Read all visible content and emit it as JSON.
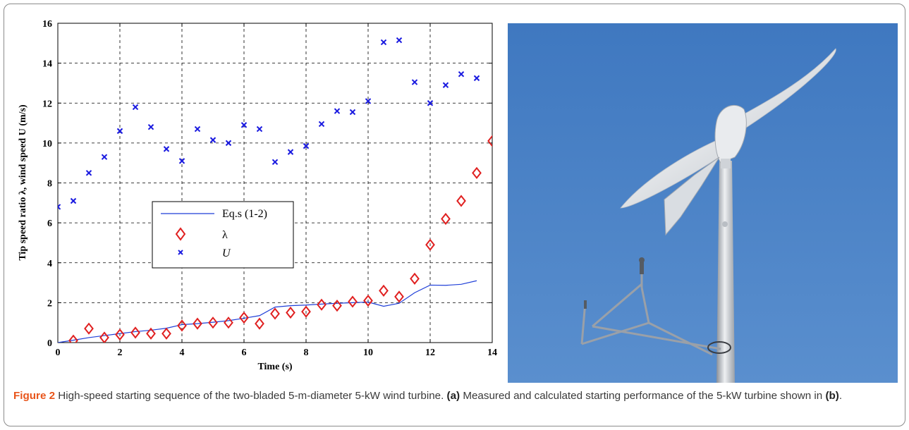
{
  "chart_data": {
    "type": "scatter",
    "xlabel": "Time (s)",
    "ylabel": "Tip speed ratio λ, wind speed U (m/s)",
    "xlim": [
      0,
      14
    ],
    "ylim": [
      0,
      16
    ],
    "xticks": [
      "0",
      "2",
      "4",
      "6",
      "8",
      "10",
      "12",
      "14"
    ],
    "yticks": [
      "0",
      "2",
      "4",
      "6",
      "8",
      "10",
      "12",
      "14",
      "16"
    ],
    "grid": true,
    "legend_position": "center-left",
    "series": [
      {
        "name": "Eq.s (1-2)",
        "kind": "line",
        "color": "#1f3fd8",
        "x": [
          0,
          0.5,
          1,
          1.5,
          2,
          2.5,
          3,
          3.5,
          4,
          4.5,
          5,
          5.5,
          6,
          6.5,
          7,
          7.5,
          8,
          8.5,
          9,
          9.5,
          10,
          10.5,
          11,
          11.5,
          12,
          12.5,
          13,
          13.5
        ],
        "y": [
          0,
          0.12,
          0.25,
          0.35,
          0.45,
          0.55,
          0.62,
          0.72,
          0.9,
          0.95,
          1.02,
          1.1,
          1.22,
          1.35,
          1.78,
          1.85,
          1.88,
          1.93,
          1.97,
          2.0,
          2.03,
          1.82,
          1.97,
          2.5,
          2.88,
          2.87,
          2.92,
          3.1
        ]
      },
      {
        "name": "λ",
        "kind": "diamond",
        "color": "#e02020",
        "x": [
          0.5,
          1,
          1.5,
          2,
          2.5,
          3,
          3.5,
          4,
          4.5,
          5,
          5.5,
          6,
          6.5,
          7,
          7.5,
          8,
          8.5,
          9,
          9.5,
          10,
          10.5,
          11,
          11.5,
          12,
          12.5,
          13,
          13.5,
          14
        ],
        "y": [
          0.1,
          0.7,
          0.25,
          0.4,
          0.5,
          0.45,
          0.45,
          0.85,
          0.95,
          1.0,
          1.0,
          1.25,
          0.95,
          1.45,
          1.5,
          1.55,
          1.9,
          1.85,
          2.05,
          2.1,
          2.6,
          2.3,
          3.2,
          4.9,
          6.2,
          7.1,
          8.5,
          10.1
        ]
      },
      {
        "name": "U",
        "kind": "x",
        "color": "#1a1ae0",
        "x": [
          0,
          0.5,
          1,
          1.5,
          2,
          2.5,
          3,
          3.5,
          4,
          4.5,
          5,
          5.5,
          6,
          6.5,
          7,
          7.5,
          8,
          8.5,
          9,
          9.5,
          10,
          10.5,
          11,
          11.5,
          12,
          12.5,
          13,
          13.5
        ],
        "y": [
          6.8,
          7.1,
          8.5,
          9.3,
          10.6,
          11.8,
          10.8,
          9.7,
          9.1,
          10.7,
          10.15,
          10.0,
          10.9,
          10.7,
          9.05,
          9.55,
          9.85,
          10.95,
          11.6,
          11.55,
          12.1,
          15.05,
          15.15,
          13.05,
          12.0,
          12.9,
          13.45,
          13.25
        ]
      }
    ]
  },
  "legend": {
    "line_label": "Eq.s (1-2)",
    "diamond_label": "λ",
    "x_label": "U"
  },
  "photo": {
    "subject": "two-bladed wind turbine on mast with anemometer boom",
    "sky_color": "#4f84c6"
  },
  "caption": {
    "figure_label": "Figure 2",
    "text_1": " High-speed starting sequence of the two-bladed 5-m-diameter 5-kW wind turbine. ",
    "part_a": "(a)",
    "text_2": " Measured and calculated starting performance of the 5-kW turbine shown in ",
    "part_b": "(b)",
    "text_3": "."
  }
}
